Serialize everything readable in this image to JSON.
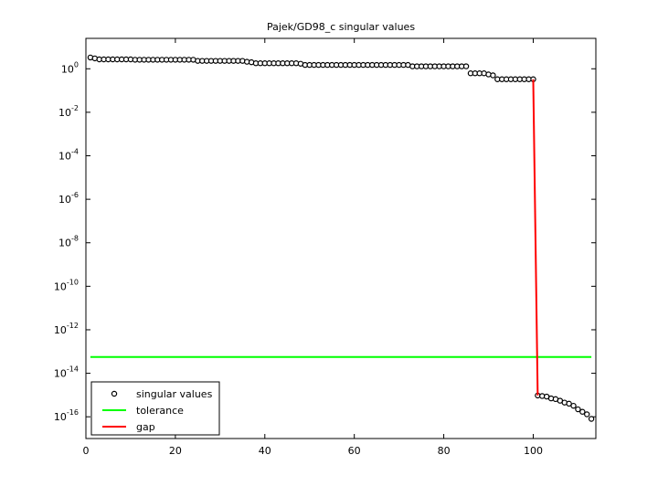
{
  "chart_data": {
    "type": "scatter",
    "title": "Pajek/GD98_c singular values",
    "log_y": true,
    "legend": "lower left",
    "xlim": [
      0,
      114
    ],
    "xticks": [
      0,
      20,
      40,
      60,
      80,
      100
    ],
    "ylim": [
      1e-17,
      25
    ],
    "yticks": [
      {
        "value": 1e-16,
        "label": "10^-16"
      },
      {
        "value": 1e-14,
        "label": "10^-14"
      },
      {
        "value": 1e-12,
        "label": "10^-12"
      },
      {
        "value": 1e-10,
        "label": "10^-10"
      },
      {
        "value": 1e-08,
        "label": "10^-8"
      },
      {
        "value": 1e-06,
        "label": "10^-6"
      },
      {
        "value": 0.0001,
        "label": "10^-4"
      },
      {
        "value": 0.01,
        "label": "10^-2"
      },
      {
        "value": 1,
        "label": "10^0"
      }
    ],
    "series": [
      {
        "name": "singular values",
        "type": "scatter",
        "color": "#000000",
        "x": [
          1,
          2,
          3,
          4,
          5,
          6,
          7,
          8,
          9,
          10,
          11,
          12,
          13,
          14,
          15,
          16,
          17,
          18,
          19,
          20,
          21,
          22,
          23,
          24,
          25,
          26,
          27,
          28,
          29,
          30,
          31,
          32,
          33,
          34,
          35,
          36,
          37,
          38,
          39,
          40,
          41,
          42,
          43,
          44,
          45,
          46,
          47,
          48,
          49,
          50,
          51,
          52,
          53,
          54,
          55,
          56,
          57,
          58,
          59,
          60,
          61,
          62,
          63,
          64,
          65,
          66,
          67,
          68,
          69,
          70,
          71,
          72,
          73,
          74,
          75,
          76,
          77,
          78,
          79,
          80,
          81,
          82,
          83,
          84,
          85,
          86,
          87,
          88,
          89,
          90,
          91,
          92,
          93,
          94,
          95,
          96,
          97,
          98,
          99,
          100,
          101,
          102,
          103,
          104,
          105,
          106,
          107,
          108,
          109,
          110,
          111,
          112,
          113
        ],
        "values": [
          3.3,
          3.0,
          2.7,
          2.7,
          2.7,
          2.7,
          2.7,
          2.7,
          2.7,
          2.7,
          2.6,
          2.6,
          2.6,
          2.6,
          2.6,
          2.6,
          2.6,
          2.6,
          2.6,
          2.6,
          2.6,
          2.6,
          2.6,
          2.6,
          2.3,
          2.3,
          2.3,
          2.3,
          2.3,
          2.3,
          2.3,
          2.3,
          2.3,
          2.3,
          2.3,
          2.1,
          2.0,
          1.8,
          1.8,
          1.8,
          1.8,
          1.8,
          1.8,
          1.8,
          1.8,
          1.8,
          1.8,
          1.7,
          1.5,
          1.5,
          1.5,
          1.5,
          1.5,
          1.5,
          1.5,
          1.5,
          1.5,
          1.5,
          1.5,
          1.5,
          1.5,
          1.5,
          1.5,
          1.5,
          1.5,
          1.5,
          1.5,
          1.5,
          1.5,
          1.5,
          1.5,
          1.5,
          1.3,
          1.3,
          1.3,
          1.3,
          1.3,
          1.3,
          1.3,
          1.3,
          1.3,
          1.3,
          1.3,
          1.3,
          1.3,
          0.62,
          0.62,
          0.62,
          0.62,
          0.55,
          0.5,
          0.33,
          0.33,
          0.33,
          0.33,
          0.33,
          0.33,
          0.33,
          0.33,
          0.33,
          9.5e-16,
          9e-16,
          8.5e-16,
          7e-16,
          6.5e-16,
          5.5e-16,
          4.5e-16,
          4e-16,
          3.2e-16,
          2.2e-16,
          1.7e-16,
          1.3e-16,
          8e-17
        ]
      },
      {
        "name": "tolerance",
        "type": "line",
        "color": "#00ff00",
        "x": [
          1,
          113
        ],
        "values": [
          5.6e-14,
          5.6e-14
        ]
      },
      {
        "name": "gap",
        "type": "line",
        "color": "#ff0000",
        "x": [
          100,
          101
        ],
        "values": [
          0.33,
          9.5e-16
        ]
      }
    ]
  }
}
